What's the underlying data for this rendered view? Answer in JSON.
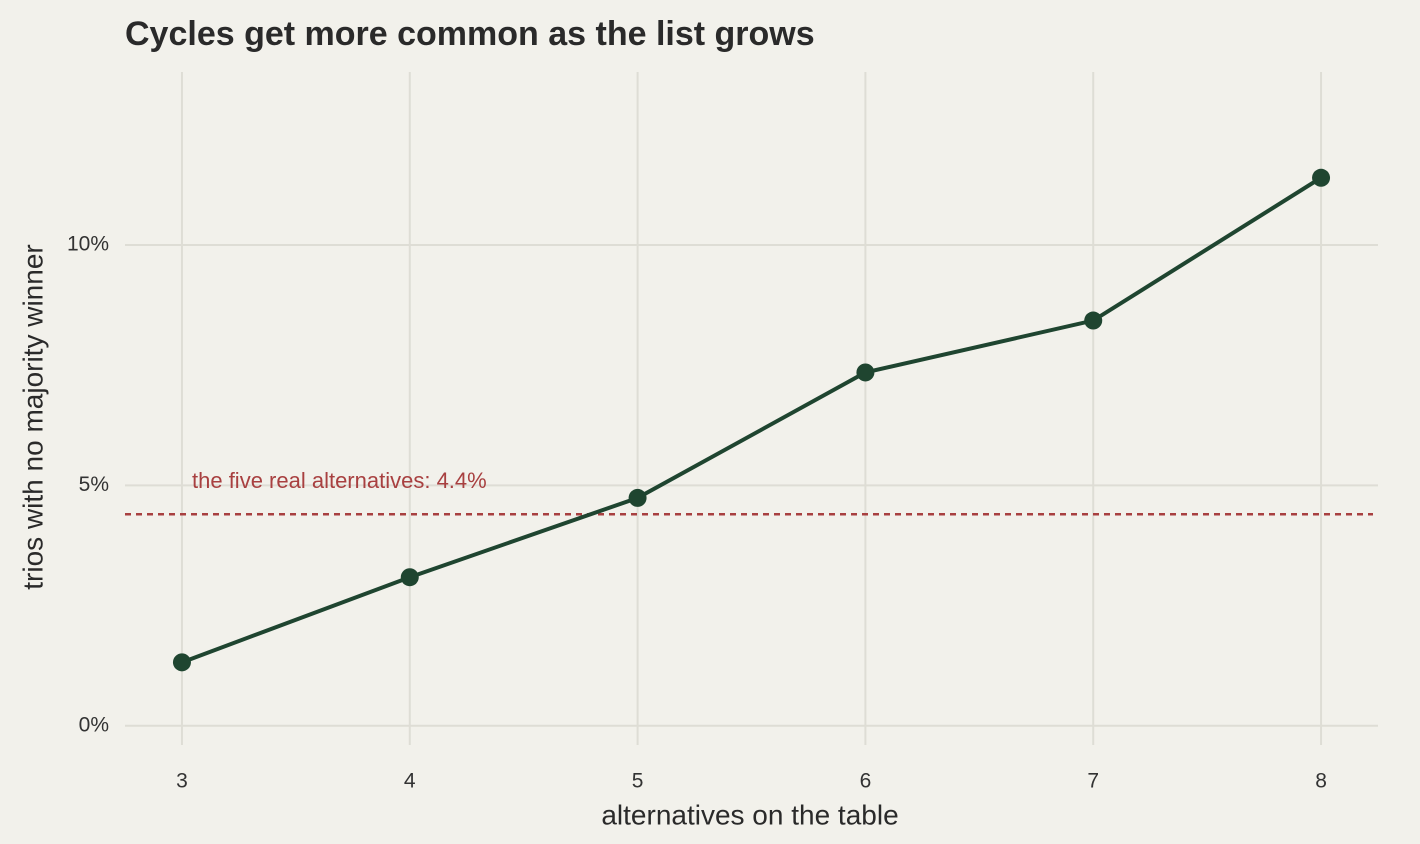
{
  "chart_data": {
    "type": "line",
    "title": "Cycles get more common as the list grows",
    "x_label": "alternatives on the table",
    "y_label": "trios with no majority winner",
    "x": [
      3,
      4,
      5,
      6,
      7,
      8
    ],
    "series": [
      {
        "name": null,
        "color": "#1f4530",
        "values": [
          1.32,
          3.09,
          4.74,
          7.35,
          8.43,
          11.4
        ]
      }
    ],
    "xlim": [
      2.75,
      8.25
    ],
    "xticks": [
      3,
      4,
      5,
      6,
      7,
      8
    ],
    "ylim": [
      -0.4,
      13.6
    ],
    "yticks": [
      {
        "value": 0,
        "label": "0%"
      },
      {
        "value": 5,
        "label": "5%"
      },
      {
        "value": 10,
        "label": "10%"
      }
    ],
    "grid": true,
    "reference_line": {
      "value": 4.4,
      "label": "the five real alternatives: 4.4%",
      "color": "#a84040"
    }
  }
}
